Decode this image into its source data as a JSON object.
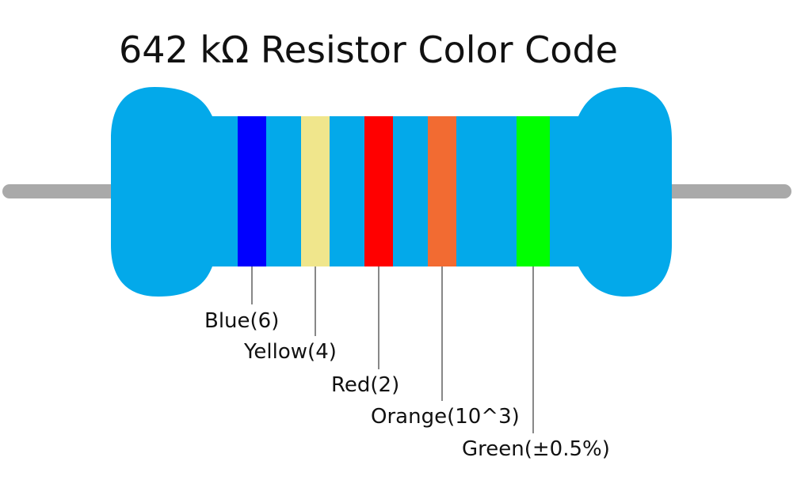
{
  "title": "642 kΩ Resistor Color Code",
  "bands": [
    {
      "label": "Blue(6)",
      "color": "#0000ff"
    },
    {
      "label": "Yellow(4)",
      "color": "#f0e68c"
    },
    {
      "label": "Red(2)",
      "color": "#ff0000"
    },
    {
      "label": "Orange(10^3)",
      "color": "#f26b32"
    },
    {
      "label": "Green(±0.5%)",
      "color": "#00ff00"
    }
  ]
}
